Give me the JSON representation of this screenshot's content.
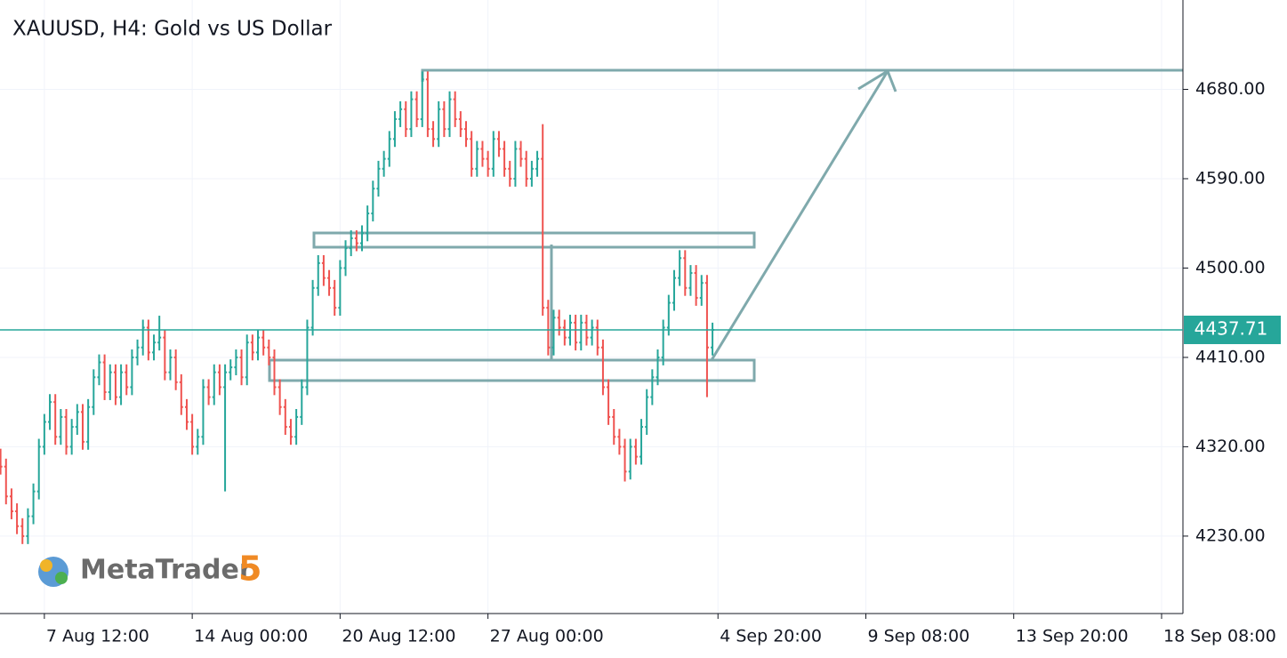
{
  "chart_data": {
    "type": "ohlc",
    "title": "XAUUSD, H4: Gold vs US Dollar",
    "logo": {
      "name": "MetaTrader",
      "version": "5"
    },
    "up_color": "#26a69a",
    "down_color": "#ef5350",
    "last_price": {
      "value": 4437.71,
      "label": "4437.71",
      "color": "#26a69a"
    },
    "ylim": [
      4152,
      4770
    ],
    "yticks": [
      {
        "value": 4230,
        "label": "4230.00"
      },
      {
        "value": 4320,
        "label": "4320.00"
      },
      {
        "value": 4410,
        "label": "4410.00"
      },
      {
        "value": 4500,
        "label": "4500.00"
      },
      {
        "value": 4590,
        "label": "4590.00"
      },
      {
        "value": 4680,
        "label": "4680.00"
      }
    ],
    "grid": true,
    "categories": [
      null,
      null,
      null,
      null,
      null,
      null,
      null,
      null,
      "7 Aug 12:00",
      null,
      null,
      null,
      null,
      null,
      null,
      null,
      null,
      null,
      null,
      null,
      null,
      null,
      null,
      null,
      null,
      null,
      null,
      null,
      null,
      null,
      null,
      null,
      null,
      null,
      null,
      "14 Aug 00:00",
      null,
      null,
      null,
      null,
      null,
      null,
      null,
      null,
      null,
      null,
      null,
      null,
      null,
      null,
      null,
      null,
      null,
      null,
      null,
      null,
      null,
      null,
      null,
      null,
      null,
      null,
      "20 Aug 12:00",
      null,
      null,
      null,
      null,
      null,
      null,
      null,
      null,
      null,
      null,
      null,
      null,
      null,
      null,
      null,
      null,
      null,
      null,
      null,
      null,
      null,
      null,
      null,
      null,
      null,
      null,
      "27 Aug 00:00",
      null,
      null,
      null,
      null,
      null,
      null,
      null,
      null,
      null,
      null,
      null,
      null,
      null,
      null,
      null,
      null,
      null,
      null,
      null,
      null,
      null,
      null,
      null,
      null,
      null,
      null,
      null,
      null,
      null,
      null,
      null,
      null,
      null,
      null,
      null,
      null,
      null,
      null,
      null,
      null,
      null,
      "4 Sep 20:00",
      null,
      null,
      null,
      null,
      null,
      null,
      null,
      null,
      null,
      null,
      null,
      null,
      null,
      null,
      null,
      null,
      null,
      null,
      null,
      null,
      null,
      null,
      null,
      null,
      null,
      null,
      "9 Sep 08:00",
      null,
      null,
      null,
      null,
      null,
      null,
      null,
      null,
      null,
      null,
      null,
      null,
      null,
      null,
      null,
      null,
      null,
      null,
      null,
      null,
      null,
      null,
      null,
      null,
      null,
      null,
      "13 Sep 20:00",
      null,
      null,
      null,
      null,
      null,
      null,
      null,
      null,
      null,
      null,
      null,
      null,
      null,
      null,
      null,
      null,
      null,
      null,
      null,
      null,
      null,
      null,
      null,
      null,
      null,
      null,
      "18 Sep 08:00",
      null,
      null,
      null
    ],
    "open": [
      4310,
      4300,
      4270,
      4255,
      4240,
      4230,
      4250,
      4275,
      4320,
      4345,
      4365,
      4330,
      4350,
      4320,
      4340,
      4355,
      4325,
      4360,
      4390,
      4405,
      4375,
      4395,
      4370,
      4395,
      4380,
      4410,
      4420,
      4440,
      4415,
      4425,
      4430,
      4395,
      4410,
      4385,
      4360,
      4345,
      4320,
      4330,
      4380,
      4370,
      4395,
      4380,
      4395,
      4400,
      4410,
      4390,
      4425,
      4415,
      4430,
      4420,
      4410,
      4380,
      4360,
      4340,
      4330,
      4350,
      4380,
      4440,
      4480,
      4505,
      4490,
      4480,
      4460,
      4500,
      4520,
      4530,
      4525,
      4535,
      4555,
      4580,
      4600,
      4610,
      4630,
      4650,
      4660,
      4640,
      4670,
      4650,
      4690,
      4640,
      4630,
      4660,
      4640,
      4670,
      4650,
      4640,
      4630,
      4600,
      4620,
      4610,
      4600,
      4630,
      4620,
      4600,
      4590,
      4620,
      4610,
      4590,
      4600,
      4610,
      4460,
      4420,
      4450,
      4440,
      4430,
      4445,
      4425,
      4445,
      4430,
      4440,
      4420,
      4380,
      4350,
      4330,
      4320,
      4295,
      4320,
      4310,
      4340,
      4370,
      4390,
      4410,
      4440,
      4465,
      4490,
      4510,
      4480,
      4495,
      4470,
      4485,
      4420,
      null,
      null,
      null,
      null,
      null,
      null,
      null,
      null,
      null,
      null,
      null,
      null,
      null,
      null,
      null,
      null,
      null,
      null,
      null,
      null,
      null,
      null,
      null,
      null,
      null,
      null,
      null,
      null,
      null,
      null,
      null,
      null,
      null,
      null,
      null,
      null,
      null,
      null,
      null,
      null,
      null,
      null,
      null,
      null,
      null,
      null,
      null,
      null,
      null,
      null,
      null,
      null,
      null,
      null,
      null,
      null,
      null,
      null,
      null,
      null,
      null,
      null,
      null,
      null,
      null,
      null,
      null,
      null,
      null,
      null,
      null,
      null,
      null,
      null,
      null,
      null,
      null,
      null,
      null,
      null,
      null,
      null,
      null,
      null,
      null
    ],
    "high": [
      4318,
      4308,
      4278,
      4263,
      4248,
      4258,
      4283,
      4328,
      4353,
      4373,
      4373,
      4358,
      4358,
      4348,
      4363,
      4363,
      4368,
      4398,
      4413,
      4413,
      4403,
      4403,
      4403,
      4403,
      4418,
      4428,
      4448,
      4448,
      4433,
      4452,
      4438,
      4418,
      4418,
      4393,
      4368,
      4353,
      4338,
      4388,
      4388,
      4403,
      4403,
      4403,
      4408,
      4418,
      4418,
      4433,
      4433,
      4438,
      4438,
      4428,
      4418,
      4388,
      4368,
      4348,
      4358,
      4388,
      4448,
      4488,
      4513,
      4513,
      4498,
      4488,
      4508,
      4528,
      4538,
      4538,
      4543,
      4563,
      4588,
      4608,
      4618,
      4638,
      4658,
      4668,
      4668,
      4678,
      4678,
      4698,
      4698,
      4648,
      4668,
      4668,
      4678,
      4678,
      4658,
      4648,
      4638,
      4628,
      4628,
      4618,
      4638,
      4638,
      4628,
      4608,
      4628,
      4628,
      4618,
      4608,
      4618,
      4645,
      4468,
      4458,
      4458,
      4448,
      4453,
      4453,
      4453,
      4453,
      4448,
      4448,
      4428,
      4388,
      4358,
      4338,
      4328,
      4328,
      4328,
      4348,
      4378,
      4398,
      4418,
      4448,
      4473,
      4498,
      4518,
      4518,
      4503,
      4503,
      4493,
      4493,
      4445,
      null,
      null,
      null,
      null,
      null,
      null,
      null,
      null,
      null,
      null,
      null,
      null,
      null,
      null,
      null,
      null,
      null,
      null,
      null,
      null,
      null,
      null,
      null,
      null,
      null,
      null,
      null,
      null,
      null,
      null,
      null,
      null,
      null,
      null,
      null,
      null,
      null,
      null,
      null,
      null,
      null,
      null,
      null,
      null,
      null,
      null,
      null,
      null,
      null,
      null,
      null,
      null,
      null,
      null,
      null,
      null,
      null,
      null,
      null,
      null,
      null,
      null,
      null,
      null,
      null,
      null,
      null,
      null,
      null,
      null,
      null,
      null,
      null,
      null,
      null,
      null,
      null,
      null,
      null,
      null,
      null,
      null,
      null,
      null,
      null
    ],
    "low": [
      4292,
      4262,
      4247,
      4232,
      4222,
      4222,
      4242,
      4267,
      4312,
      4337,
      4322,
      4322,
      4312,
      4312,
      4332,
      4317,
      4317,
      4352,
      4382,
      4367,
      4367,
      4362,
      4362,
      4372,
      4372,
      4402,
      4412,
      4407,
      4407,
      4417,
      4387,
      4387,
      4377,
      4352,
      4337,
      4312,
      4312,
      4322,
      4362,
      4362,
      4372,
      4275,
      4387,
      4392,
      4382,
      4382,
      4407,
      4407,
      4412,
      4402,
      4372,
      4352,
      4332,
      4322,
      4322,
      4342,
      4372,
      4432,
      4472,
      4482,
      4472,
      4452,
      4452,
      4492,
      4512,
      4517,
      4517,
      4527,
      4547,
      4572,
      4592,
      4602,
      4622,
      4642,
      4632,
      4632,
      4642,
      4642,
      4632,
      4622,
      4622,
      4632,
      4632,
      4642,
      4632,
      4622,
      4592,
      4592,
      4602,
      4592,
      4592,
      4612,
      4592,
      4582,
      4582,
      4602,
      4582,
      4582,
      4592,
      4452,
      4412,
      4412,
      4432,
      4422,
      4422,
      4417,
      4417,
      4422,
      4422,
      4412,
      4372,
      4342,
      4322,
      4312,
      4285,
      4287,
      4302,
      4302,
      4332,
      4362,
      4382,
      4402,
      4432,
      4457,
      4482,
      4472,
      4472,
      4462,
      4462,
      4370,
      4412,
      null,
      null,
      null,
      null,
      null,
      null,
      null,
      null,
      null,
      null,
      null,
      null,
      null,
      null,
      null,
      null,
      null,
      null,
      null,
      null,
      null,
      null,
      null,
      null,
      null,
      null,
      null,
      null,
      null,
      null,
      null,
      null,
      null,
      null,
      null,
      null,
      null,
      null,
      null,
      null,
      null,
      null,
      null,
      null,
      null,
      null,
      null,
      null,
      null,
      null,
      null,
      null,
      null,
      null,
      null,
      null,
      null,
      null,
      null,
      null,
      null,
      null,
      null,
      null,
      null,
      null,
      null,
      null,
      null,
      null,
      null,
      null,
      null,
      null,
      null,
      null,
      null,
      null,
      null,
      null,
      null,
      null,
      null,
      null,
      null
    ],
    "close": [
      4300,
      4270,
      4255,
      4240,
      4230,
      4250,
      4275,
      4320,
      4345,
      4365,
      4330,
      4350,
      4320,
      4340,
      4355,
      4325,
      4360,
      4390,
      4405,
      4375,
      4395,
      4370,
      4395,
      4380,
      4410,
      4420,
      4440,
      4415,
      4425,
      4430,
      4395,
      4410,
      4385,
      4360,
      4345,
      4320,
      4330,
      4380,
      4370,
      4395,
      4380,
      4395,
      4400,
      4410,
      4390,
      4425,
      4415,
      4430,
      4420,
      4410,
      4380,
      4360,
      4340,
      4330,
      4350,
      4380,
      4440,
      4480,
      4505,
      4490,
      4480,
      4460,
      4500,
      4520,
      4530,
      4525,
      4535,
      4555,
      4580,
      4600,
      4610,
      4630,
      4650,
      4660,
      4640,
      4670,
      4650,
      4690,
      4640,
      4630,
      4660,
      4640,
      4670,
      4650,
      4640,
      4630,
      4600,
      4620,
      4610,
      4600,
      4630,
      4620,
      4600,
      4590,
      4620,
      4610,
      4590,
      4600,
      4610,
      4460,
      4420,
      4450,
      4440,
      4430,
      4445,
      4425,
      4445,
      4430,
      4440,
      4420,
      4380,
      4350,
      4330,
      4320,
      4295,
      4320,
      4310,
      4340,
      4370,
      4390,
      4410,
      4440,
      4465,
      4490,
      4510,
      4480,
      4495,
      4470,
      4485,
      4420,
      4437.71,
      null,
      null,
      null,
      null,
      null,
      null,
      null,
      null,
      null,
      null,
      null,
      null,
      null,
      null,
      null,
      null,
      null,
      null,
      null,
      null,
      null,
      null,
      null,
      null,
      null,
      null,
      null,
      null,
      null,
      null,
      null,
      null,
      null,
      null,
      null,
      null,
      null,
      null,
      null,
      null,
      null,
      null,
      null,
      null,
      null,
      null,
      null,
      null,
      null,
      null,
      null,
      null,
      null,
      null,
      null,
      null,
      null,
      null,
      null,
      null,
      null,
      null,
      null,
      null,
      null,
      null,
      null,
      null,
      null,
      null,
      null,
      null,
      null,
      null,
      null,
      null,
      null,
      null,
      null,
      null,
      null,
      null,
      null,
      null,
      null
    ]
  }
}
